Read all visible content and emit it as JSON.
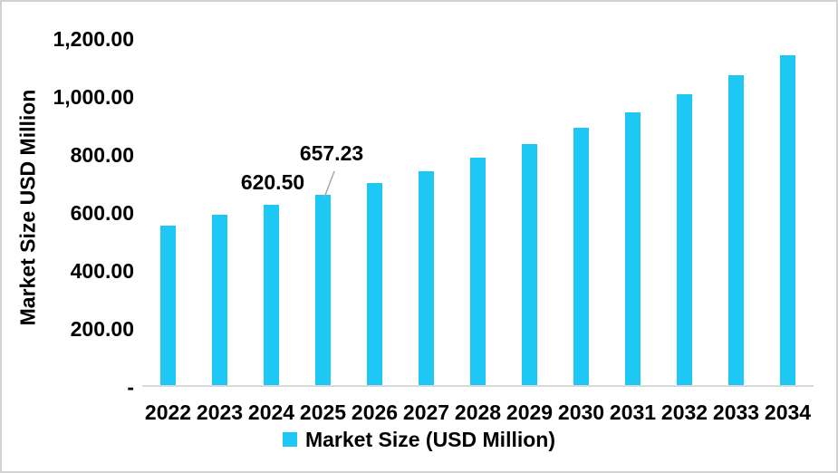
{
  "chart_data": {
    "type": "bar",
    "title": "",
    "xlabel": "",
    "ylabel": "Market Size USD Million",
    "categories": [
      "2022",
      "2023",
      "2024",
      "2025",
      "2026",
      "2027",
      "2028",
      "2029",
      "2030",
      "2031",
      "2032",
      "2033",
      "2034"
    ],
    "series": [
      {
        "name": "Market Size (USD Million)",
        "values": [
          551,
          586,
          620.5,
          657.23,
          698,
          738,
          785,
          832,
          886,
          941,
          1003,
          1069,
          1138
        ]
      }
    ],
    "ylim": [
      0,
      1200
    ],
    "ytick_interval": 200,
    "yticks": [
      {
        "label": "-",
        "value": 0
      },
      {
        "label": "200.00",
        "value": 200
      },
      {
        "label": "400.00",
        "value": 400
      },
      {
        "label": "600.00",
        "value": 600
      },
      {
        "label": "800.00",
        "value": 800
      },
      {
        "label": "1,000.00",
        "value": 1000
      },
      {
        "label": "1,200.00",
        "value": 1200
      }
    ],
    "grid": false,
    "legend_position": "bottom",
    "data_labels": [
      {
        "category": "2024",
        "text": "620.50",
        "leader_line": false
      },
      {
        "category": "2025",
        "text": "657.23",
        "leader_line": true
      }
    ]
  },
  "colors": {
    "bar": "#1EC8F5",
    "axis_line": "#D9D9D9",
    "leader_line": "#A6A6A6",
    "text": "#000000",
    "frame_border": "#D2D2D2"
  }
}
